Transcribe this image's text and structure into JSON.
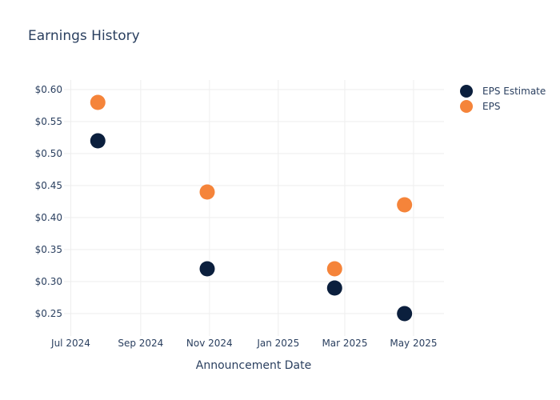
{
  "chart_data": {
    "type": "scatter",
    "title": "Earnings History",
    "xlabel": "Announcement Date",
    "ylabel": "",
    "x_axis_type": "date",
    "xlim": [
      "2024-06-25",
      "2025-05-28"
    ],
    "ylim": [
      0.215,
      0.615
    ],
    "x_ticks": [
      {
        "value": "2024-07-01",
        "label": "Jul 2024"
      },
      {
        "value": "2024-09-01",
        "label": "Sep 2024"
      },
      {
        "value": "2024-11-01",
        "label": "Nov 2024"
      },
      {
        "value": "2025-01-01",
        "label": "Jan 2025"
      },
      {
        "value": "2025-03-01",
        "label": "Mar 2025"
      },
      {
        "value": "2025-05-01",
        "label": "May 2025"
      }
    ],
    "y_ticks": [
      {
        "value": 0.25,
        "label": "$0.25"
      },
      {
        "value": 0.3,
        "label": "$0.30"
      },
      {
        "value": 0.35,
        "label": "$0.35"
      },
      {
        "value": 0.4,
        "label": "$0.40"
      },
      {
        "value": 0.45,
        "label": "$0.45"
      },
      {
        "value": 0.5,
        "label": "$0.50"
      },
      {
        "value": 0.55,
        "label": "$0.55"
      },
      {
        "value": 0.6,
        "label": "$0.60"
      }
    ],
    "grid": true,
    "legend_position": "top-right",
    "series": [
      {
        "name": "EPS Estimate",
        "color": "#0b1f3d",
        "points": [
          {
            "x": "2024-07-25",
            "y": 0.52
          },
          {
            "x": "2024-10-30",
            "y": 0.32
          },
          {
            "x": "2025-02-20",
            "y": 0.29
          },
          {
            "x": "2025-04-23",
            "y": 0.25
          }
        ]
      },
      {
        "name": "EPS",
        "color": "#f5843a",
        "points": [
          {
            "x": "2024-07-25",
            "y": 0.58
          },
          {
            "x": "2024-10-30",
            "y": 0.44
          },
          {
            "x": "2025-02-20",
            "y": 0.32
          },
          {
            "x": "2025-04-23",
            "y": 0.42
          }
        ]
      }
    ]
  }
}
